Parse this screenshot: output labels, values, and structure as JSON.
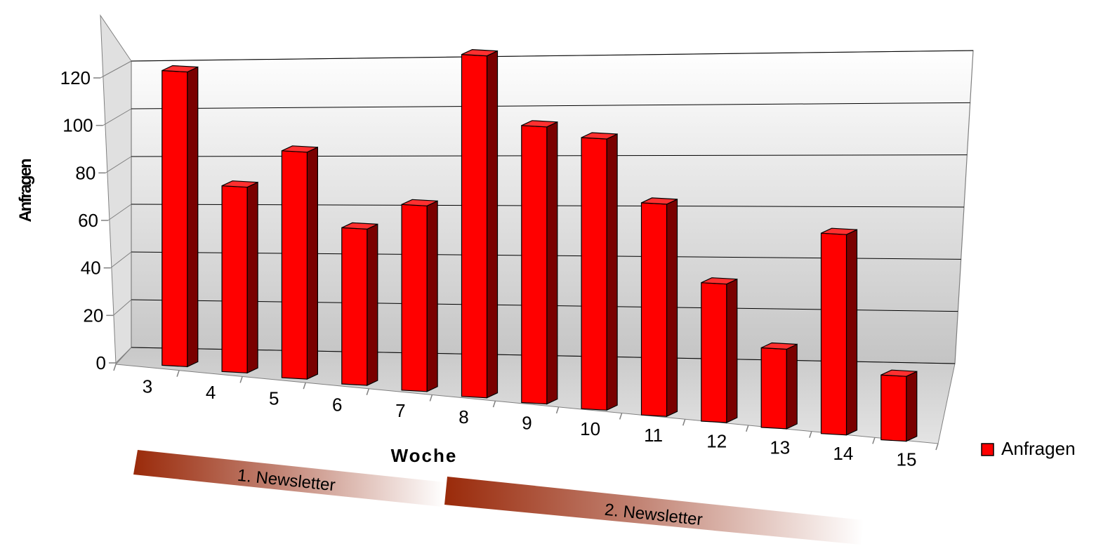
{
  "chart_data": {
    "type": "bar",
    "categories": [
      "3",
      "4",
      "5",
      "6",
      "7",
      "8",
      "9",
      "10",
      "11",
      "12",
      "13",
      "14",
      "15"
    ],
    "series": [
      {
        "name": "Anfragen",
        "values": [
          100,
          63,
          77,
          53,
          63,
          116,
          94,
          92,
          72,
          47,
          27,
          68,
          22
        ],
        "color": "#ff0000"
      }
    ],
    "xlabel": "Woche",
    "ylabel": "Anfragen",
    "ylim": [
      0,
      120
    ],
    "yticks": [
      "0",
      "20",
      "40",
      "60",
      "80",
      "100",
      "120"
    ],
    "grid": true,
    "legend": {
      "position": "right",
      "label": "Anfragen"
    },
    "annotations": [
      {
        "text": "1. Newsletter",
        "weeks": [
          "3",
          "7"
        ]
      },
      {
        "text": "2. Newsletter",
        "weeks": [
          "8",
          "14"
        ]
      }
    ],
    "style": "3d"
  }
}
